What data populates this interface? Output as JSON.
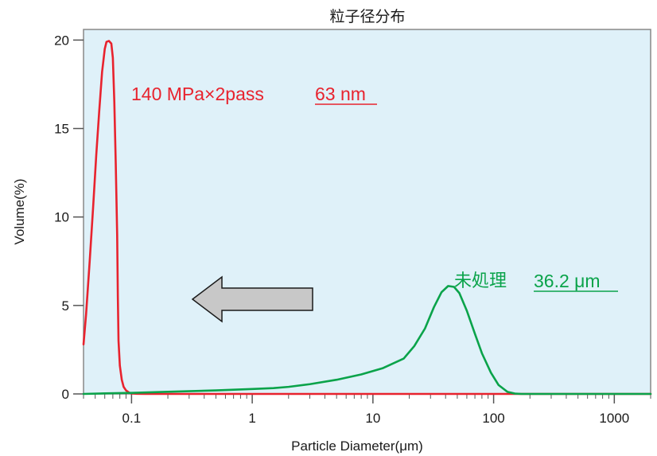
{
  "chart_data": {
    "type": "line",
    "title": "粒子径分布",
    "xlabel": "Particle Diameter",
    "xlabel_unit": "(μm)",
    "ylabel": "Volume(%)",
    "x_scale": "log",
    "xlim": [
      0.04,
      2000
    ],
    "ylim": [
      0,
      20.6
    ],
    "x_ticks": [
      0.1,
      1,
      10,
      100,
      1000
    ],
    "x_tick_labels": [
      "0.1",
      "1",
      "10",
      "100",
      "1000"
    ],
    "y_ticks": [
      0,
      5,
      10,
      15,
      20
    ],
    "y_tick_labels": [
      "0",
      "5",
      "10",
      "15",
      "20"
    ],
    "background": "#dff1f9",
    "series": [
      {
        "name": "140 MPa×2pass",
        "label_value": "63 nm",
        "color": "#e8232e",
        "points": [
          [
            0.04,
            2.8
          ],
          [
            0.042,
            4.5
          ],
          [
            0.045,
            7.5
          ],
          [
            0.048,
            10.5
          ],
          [
            0.051,
            13.5
          ],
          [
            0.054,
            16.0
          ],
          [
            0.057,
            18.2
          ],
          [
            0.06,
            19.5
          ],
          [
            0.062,
            19.9
          ],
          [
            0.065,
            19.95
          ],
          [
            0.068,
            19.8
          ],
          [
            0.07,
            19.0
          ],
          [
            0.072,
            16.5
          ],
          [
            0.074,
            13.0
          ],
          [
            0.076,
            9.0
          ],
          [
            0.077,
            5.5
          ],
          [
            0.078,
            3.0
          ],
          [
            0.08,
            1.6
          ],
          [
            0.083,
            0.8
          ],
          [
            0.086,
            0.4
          ],
          [
            0.09,
            0.2
          ],
          [
            0.095,
            0.08
          ],
          [
            0.1,
            0.03
          ],
          [
            0.11,
            0.01
          ],
          [
            0.13,
            0.0
          ],
          [
            0.2,
            0.0
          ],
          [
            1,
            0.0
          ],
          [
            10,
            0.0
          ],
          [
            100,
            0.0
          ],
          [
            1000,
            0.0
          ],
          [
            2000,
            0.0
          ]
        ]
      },
      {
        "name": "未処理",
        "label_value": "36.2 μm",
        "color": "#0aa34a",
        "points": [
          [
            0.04,
            0.0
          ],
          [
            0.06,
            0.03
          ],
          [
            0.1,
            0.06
          ],
          [
            0.2,
            0.12
          ],
          [
            0.5,
            0.2
          ],
          [
            1,
            0.28
          ],
          [
            1.5,
            0.33
          ],
          [
            2,
            0.4
          ],
          [
            3,
            0.55
          ],
          [
            5,
            0.8
          ],
          [
            8,
            1.1
          ],
          [
            12,
            1.45
          ],
          [
            18,
            2.0
          ],
          [
            22,
            2.7
          ],
          [
            27,
            3.7
          ],
          [
            32,
            4.9
          ],
          [
            37,
            5.75
          ],
          [
            42,
            6.1
          ],
          [
            47,
            6.05
          ],
          [
            52,
            5.7
          ],
          [
            60,
            4.7
          ],
          [
            70,
            3.4
          ],
          [
            80,
            2.3
          ],
          [
            95,
            1.2
          ],
          [
            110,
            0.5
          ],
          [
            130,
            0.12
          ],
          [
            150,
            0.02
          ],
          [
            170,
            0.0
          ],
          [
            500,
            0.0
          ],
          [
            2000,
            0.0
          ]
        ]
      }
    ],
    "annotations": [
      {
        "type": "arrow",
        "direction": "left",
        "color": "#c8c8c8"
      }
    ]
  }
}
